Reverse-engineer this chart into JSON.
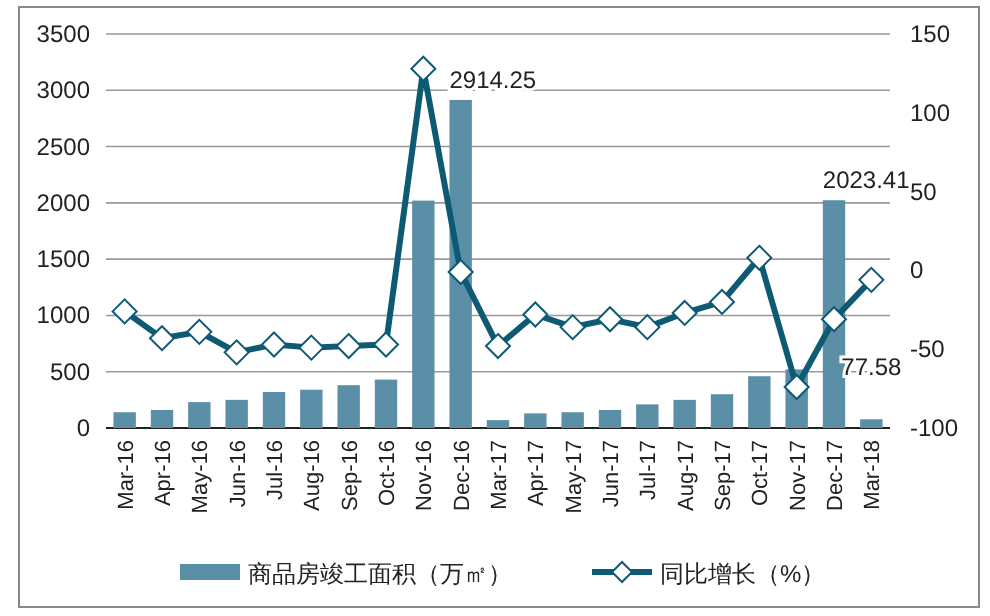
{
  "chart_data": {
    "type": "bar",
    "categories": [
      "Mar-16",
      "Apr-16",
      "May-16",
      "Jun-16",
      "Jul-16",
      "Aug-16",
      "Sep-16",
      "Oct-16",
      "Nov-16",
      "Dec-16",
      "Mar-17",
      "Apr-17",
      "May-17",
      "Jun-17",
      "Jul-17",
      "Aug-17",
      "Sep-17",
      "Oct-17",
      "Nov-17",
      "Dec-17",
      "Mar-18"
    ],
    "series": [
      {
        "name": "商品房竣工面积（万㎡）",
        "color": "#5b8fa8",
        "values": [
          140,
          160,
          230,
          250,
          320,
          340,
          380,
          430,
          2020,
          2914.25,
          70,
          130,
          140,
          160,
          210,
          250,
          300,
          460,
          520,
          2023.41,
          77.58
        ],
        "value_labels": [
          null,
          null,
          null,
          null,
          null,
          null,
          null,
          null,
          null,
          "2914.25",
          null,
          null,
          null,
          null,
          null,
          null,
          null,
          null,
          null,
          "2023.41",
          "77.58"
        ]
      },
      {
        "name": "同比增长（%）",
        "type": "line",
        "axis": "y2",
        "color": "#0e5a73",
        "marker": "diamond",
        "values": [
          -26,
          -43,
          -39,
          -52,
          -47,
          -49,
          -48,
          -47,
          128,
          -1,
          -48,
          -28,
          -36,
          -31,
          -36,
          -27,
          -20,
          8,
          -74,
          -31,
          -6
        ]
      }
    ],
    "ylim": [
      0,
      3500
    ],
    "yticks": [
      0,
      500,
      1000,
      1500,
      2000,
      2500,
      3000,
      3500
    ],
    "y2lim": [
      -100,
      150
    ],
    "y2ticks": [
      -100,
      -50,
      0,
      50,
      100,
      150
    ],
    "grid": "y",
    "legend": "bottom"
  }
}
